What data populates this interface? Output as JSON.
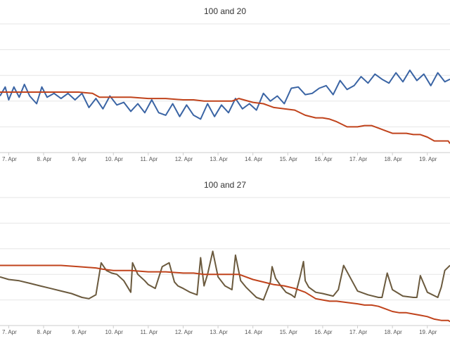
{
  "colors": {
    "blue": "#3a64a4",
    "orange": "#c0431c",
    "brown": "#6b5a3e",
    "grid": "#e6e6e6",
    "axis": "#cccccc"
  },
  "chart_data": [
    {
      "type": "line",
      "title": "100 and 20",
      "xlabel": "",
      "ylabel": "",
      "x_tick_labels": [
        "7. Apr",
        "8. Apr",
        "9. Apr",
        "10. Apr",
        "11. Apr",
        "12. Apr",
        "13. Apr",
        "14. Apr",
        "15. Apr",
        "16. Apr",
        "17. Apr",
        "18. Apr",
        "19. Apr"
      ],
      "x_range": [
        6.75,
        19.65
      ],
      "ylim": [
        0,
        5
      ],
      "y_gridlines": [
        1,
        2,
        3,
        4,
        5
      ],
      "grid": true,
      "legend": "none",
      "series": [
        {
          "color": "blue",
          "x": [
            6.75,
            6.9,
            7.0,
            7.15,
            7.3,
            7.45,
            7.6,
            7.8,
            7.95,
            8.1,
            8.3,
            8.5,
            8.7,
            8.9,
            9.1,
            9.3,
            9.5,
            9.7,
            9.9,
            10.1,
            10.3,
            10.5,
            10.7,
            10.9,
            11.1,
            11.3,
            11.5,
            11.7,
            11.9,
            12.1,
            12.3,
            12.5,
            12.7,
            12.9,
            13.1,
            13.3,
            13.5,
            13.7,
            13.9,
            14.1,
            14.3,
            14.5,
            14.7,
            14.9,
            15.1,
            15.3,
            15.5,
            15.7,
            15.9,
            16.1,
            16.3,
            16.5,
            16.7,
            16.9,
            17.1,
            17.3,
            17.5,
            17.7,
            17.9,
            18.1,
            18.3,
            18.5,
            18.7,
            18.9,
            19.1,
            19.3,
            19.5,
            19.65
          ],
          "y": [
            2.2,
            2.55,
            2.05,
            2.55,
            2.15,
            2.65,
            2.2,
            1.9,
            2.55,
            2.15,
            2.3,
            2.1,
            2.3,
            2.05,
            2.3,
            1.75,
            2.1,
            1.7,
            2.2,
            1.85,
            1.95,
            1.6,
            1.9,
            1.55,
            2.05,
            1.55,
            1.45,
            1.9,
            1.4,
            1.85,
            1.45,
            1.3,
            1.9,
            1.4,
            1.85,
            1.55,
            2.1,
            1.7,
            1.9,
            1.65,
            2.3,
            2.0,
            2.2,
            1.9,
            2.5,
            2.55,
            2.25,
            2.3,
            2.5,
            2.6,
            2.25,
            2.8,
            2.45,
            2.6,
            2.95,
            2.7,
            3.05,
            2.85,
            2.7,
            3.1,
            2.75,
            3.2,
            2.8,
            3.05,
            2.6,
            3.1,
            2.75,
            2.85
          ]
        },
        {
          "color": "orange",
          "x": [
            6.75,
            7.5,
            8.0,
            8.5,
            9.0,
            9.4,
            9.6,
            10.0,
            10.5,
            11.0,
            11.5,
            12.0,
            12.3,
            12.6,
            13.0,
            13.4,
            13.6,
            14.0,
            14.3,
            14.6,
            14.9,
            15.2,
            15.5,
            15.8,
            16.0,
            16.2,
            16.4,
            16.7,
            17.0,
            17.2,
            17.4,
            17.6,
            17.8,
            18.0,
            18.2,
            18.4,
            18.6,
            18.8,
            19.0,
            19.2,
            19.4,
            19.6,
            19.65
          ],
          "y": [
            2.35,
            2.35,
            2.35,
            2.35,
            2.35,
            2.3,
            2.15,
            2.15,
            2.15,
            2.1,
            2.1,
            2.05,
            2.05,
            2.0,
            2.0,
            2.0,
            2.1,
            1.95,
            1.9,
            1.75,
            1.7,
            1.65,
            1.45,
            1.35,
            1.35,
            1.3,
            1.2,
            1.0,
            1.0,
            1.05,
            1.05,
            0.95,
            0.85,
            0.75,
            0.75,
            0.75,
            0.7,
            0.7,
            0.6,
            0.45,
            0.45,
            0.45,
            0.35
          ]
        }
      ]
    },
    {
      "type": "line",
      "title": "100 and 27",
      "xlabel": "",
      "ylabel": "",
      "x_tick_labels": [
        "7. Apr",
        "8. Apr",
        "9. Apr",
        "10. Apr",
        "11. Apr",
        "12. Apr",
        "13. Apr",
        "14. Apr",
        "15. Apr",
        "16. Apr",
        "17. Apr",
        "18. Apr",
        "19. Apr"
      ],
      "x_range": [
        6.75,
        19.65
      ],
      "ylim": [
        0,
        5
      ],
      "y_gridlines": [
        1,
        2,
        3,
        4,
        5
      ],
      "grid": true,
      "legend": "none",
      "series": [
        {
          "color": "brown",
          "x": [
            6.75,
            7.0,
            7.3,
            7.6,
            7.9,
            8.2,
            8.5,
            8.8,
            9.1,
            9.3,
            9.5,
            9.65,
            9.8,
            9.95,
            10.1,
            10.3,
            10.5,
            10.55,
            10.7,
            10.9,
            11.0,
            11.2,
            11.4,
            11.6,
            11.75,
            11.85,
            12.0,
            12.2,
            12.4,
            12.5,
            12.6,
            12.7,
            12.85,
            13.0,
            13.2,
            13.4,
            13.5,
            13.65,
            13.8,
            13.95,
            14.1,
            14.3,
            14.5,
            14.55,
            14.65,
            14.8,
            14.95,
            15.1,
            15.2,
            15.35,
            15.45,
            15.5,
            15.6,
            15.8,
            16.0,
            16.3,
            16.45,
            16.6,
            16.8,
            17.0,
            17.3,
            17.6,
            17.7,
            17.85,
            18.0,
            18.3,
            18.6,
            18.7,
            18.8,
            19.0,
            19.3,
            19.4,
            19.5,
            19.65
          ],
          "y": [
            1.9,
            1.8,
            1.75,
            1.65,
            1.55,
            1.45,
            1.35,
            1.25,
            1.1,
            1.05,
            1.2,
            2.45,
            2.15,
            2.05,
            2.0,
            1.75,
            1.3,
            2.45,
            2.0,
            1.75,
            1.6,
            1.45,
            2.3,
            2.45,
            1.7,
            1.55,
            1.45,
            1.3,
            1.2,
            2.65,
            1.55,
            2.0,
            2.9,
            1.9,
            1.55,
            1.4,
            2.75,
            1.75,
            1.5,
            1.3,
            1.1,
            1.0,
            1.7,
            2.3,
            1.85,
            1.55,
            1.3,
            1.2,
            1.1,
            1.9,
            2.5,
            1.75,
            1.5,
            1.3,
            1.25,
            1.15,
            1.4,
            2.35,
            1.85,
            1.35,
            1.2,
            1.1,
            1.1,
            2.05,
            1.4,
            1.15,
            1.1,
            1.1,
            1.95,
            1.3,
            1.1,
            1.5,
            2.15,
            2.35
          ]
        },
        {
          "color": "orange",
          "x": [
            6.75,
            7.5,
            8.0,
            8.5,
            9.0,
            9.5,
            9.7,
            10.0,
            10.5,
            11.0,
            11.5,
            12.0,
            12.3,
            12.6,
            13.0,
            13.4,
            13.6,
            14.0,
            14.3,
            14.6,
            14.9,
            15.2,
            15.5,
            15.8,
            16.0,
            16.2,
            16.4,
            16.7,
            17.0,
            17.2,
            17.4,
            17.6,
            17.8,
            18.0,
            18.2,
            18.4,
            18.6,
            18.8,
            19.0,
            19.2,
            19.4,
            19.6,
            19.65
          ],
          "y": [
            2.35,
            2.35,
            2.35,
            2.35,
            2.3,
            2.25,
            2.2,
            2.15,
            2.15,
            2.1,
            2.1,
            2.05,
            2.05,
            2.0,
            2.0,
            2.0,
            2.0,
            1.8,
            1.7,
            1.6,
            1.55,
            1.45,
            1.3,
            1.05,
            1.0,
            0.95,
            0.95,
            0.9,
            0.85,
            0.8,
            0.8,
            0.75,
            0.65,
            0.55,
            0.5,
            0.5,
            0.45,
            0.4,
            0.35,
            0.25,
            0.2,
            0.2,
            0.15
          ]
        }
      ]
    }
  ]
}
